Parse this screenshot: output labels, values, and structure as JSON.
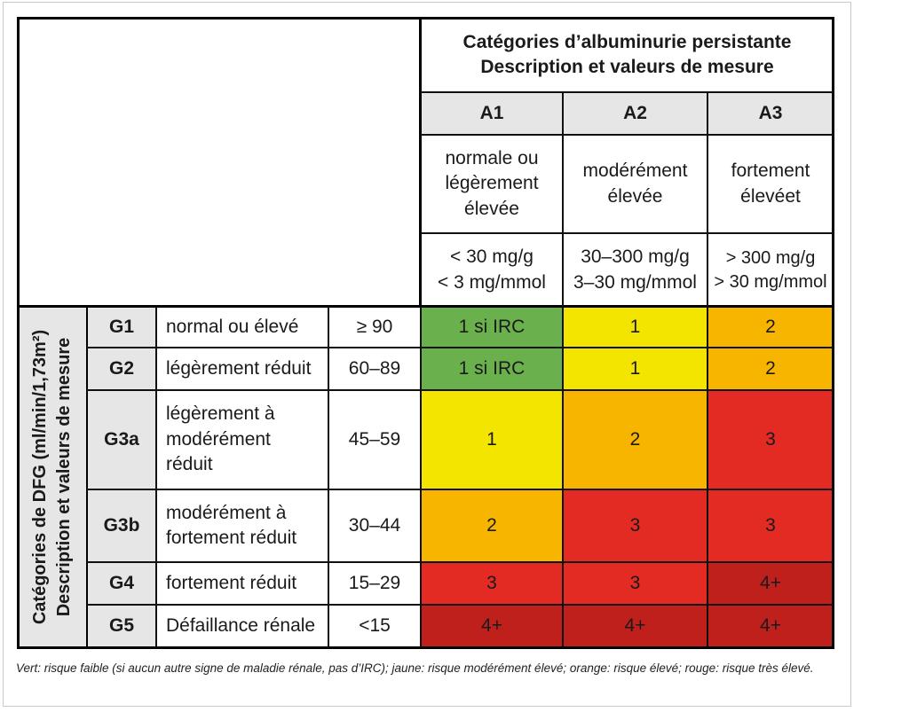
{
  "header": {
    "title_line1": "Catégories d’albuminurie persistante",
    "title_line2": "Description et valeurs de mesure"
  },
  "albuminuria": [
    {
      "code": "A1",
      "desc": "normale ou légèrement élevée",
      "values_line1": "< 30 mg/g",
      "values_line2": "< 3 mg/mmol"
    },
    {
      "code": "A2",
      "desc": "modérément élevée",
      "values_line1": "30–300 mg/g",
      "values_line2": "3–30 mg/mmol"
    },
    {
      "code": "A3",
      "desc": "fortement élevéet",
      "values_line1": "> 300 mg/g",
      "values_line2": "> 30 mg/mmol"
    }
  ],
  "dfg_label_line1": "Catégories de DFG (ml/min/1,73m²)",
  "dfg_label_line2": "Description et valeurs de mesure",
  "rows": [
    {
      "code": "G1",
      "desc": "normal ou élevé",
      "range": "≥ 90",
      "cells": [
        "1 si IRC",
        "1",
        "2"
      ]
    },
    {
      "code": "G2",
      "desc": "légèrement réduit",
      "range": "60–89",
      "cells": [
        "1 si IRC",
        "1",
        "2"
      ]
    },
    {
      "code": "G3a",
      "desc": "légèrement à modérément réduit",
      "range": "45–59",
      "cells": [
        "1",
        "2",
        "3"
      ]
    },
    {
      "code": "G3b",
      "desc": "modérément à fortement réduit",
      "range": "30–44",
      "cells": [
        "2",
        "3",
        "3"
      ]
    },
    {
      "code": "G4",
      "desc": "fortement réduit",
      "range": "15–29",
      "cells": [
        "3",
        "3",
        "4+"
      ]
    },
    {
      "code": "G5",
      "desc": "Défaillance rénale",
      "range": "<15",
      "cells": [
        "4+",
        "4+",
        "4+"
      ]
    }
  ],
  "risk_colors": {
    "green": "#6ab04c",
    "yellow": "#f4e500",
    "orange": "#f7b500",
    "red": "#e32a23",
    "dark_red": "#c0201c"
  },
  "cell_color_keys": [
    [
      "green",
      "yellow",
      "orange"
    ],
    [
      "green",
      "yellow",
      "orange"
    ],
    [
      "yellow",
      "orange",
      "red"
    ],
    [
      "orange",
      "red",
      "red"
    ],
    [
      "red",
      "red",
      "dark_red"
    ],
    [
      "dark_red",
      "dark_red",
      "dark_red"
    ]
  ],
  "footnote": "Vert: risque faible (si aucun autre signe de maladie rénale, pas d’IRC); jaune: risque modérément élevé; orange: risque élevé; rouge: risque très élevé."
}
